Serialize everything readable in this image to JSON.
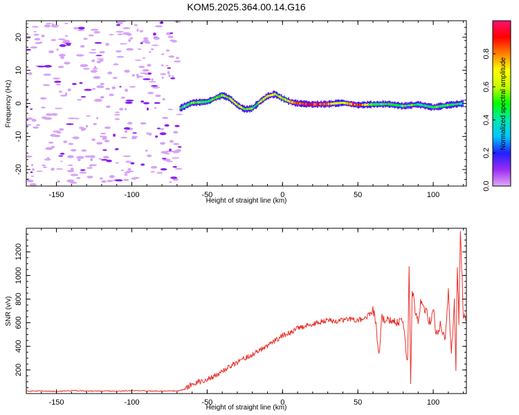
{
  "figure_title": "KOM5.2025.364.00.14.G16",
  "chart_data": [
    {
      "type": "heatmap",
      "xlabel": "Height of straight line (km)",
      "ylabel": "Frequency (Hz)",
      "xlim": [
        -170,
        122
      ],
      "ylim": [
        -25,
        25
      ],
      "x_ticks": [
        -150,
        -100,
        -50,
        0,
        50,
        100
      ],
      "x_tick_labels": [
        "-150",
        "-100",
        "-50",
        "0",
        "50",
        "100"
      ],
      "y_ticks": [
        20,
        10,
        0,
        -10,
        -20
      ],
      "y_tick_labels": [
        "20",
        "10",
        "0",
        "-10",
        "-20"
      ],
      "noise_region_x": [
        -170,
        -68
      ],
      "trace": {
        "x": [
          -68,
          -60,
          -50,
          -40,
          -35,
          -30,
          -25,
          -20,
          -15,
          -10,
          -5,
          0,
          5,
          10,
          20,
          30,
          40,
          50,
          60,
          70,
          80,
          90,
          100,
          110,
          120
        ],
        "freq": [
          -1.5,
          0.2,
          0.5,
          2.5,
          1.5,
          -0.5,
          -1.8,
          -1.5,
          0.5,
          2.2,
          2.8,
          1.5,
          0.5,
          0.0,
          -0.3,
          -0.2,
          0.2,
          -0.5,
          -0.3,
          -0.2,
          -0.8,
          -0.3,
          -1.2,
          -0.5,
          0.0
        ],
        "amplitude": [
          0.45,
          0.5,
          0.5,
          0.55,
          0.5,
          0.6,
          0.55,
          0.5,
          0.55,
          0.65,
          0.6,
          0.55,
          0.7,
          0.85,
          0.9,
          0.75,
          0.65,
          0.85,
          0.5,
          0.45,
          0.5,
          0.45,
          0.45,
          0.5,
          0.4
        ]
      },
      "colorbar": {
        "label": "Normalized spectral amplitude",
        "range": [
          0,
          1
        ],
        "ticks": [
          0.0,
          0.2,
          0.4,
          0.6,
          0.8
        ],
        "tick_labels": [
          "0.0",
          "0.2",
          "0.4",
          "0.6",
          "0.8"
        ],
        "colors": [
          "#e2a8f7",
          "#9b2bf2",
          "#2020ff",
          "#00c8ff",
          "#00e8b0",
          "#00ff00",
          "#c8ff00",
          "#ffff00",
          "#ff8000",
          "#ff0000",
          "#ff1070"
        ]
      }
    },
    {
      "type": "line",
      "xlabel": "Height of straight line (km)",
      "ylabel": "SNR (v/v)",
      "xlim": [
        -170,
        122
      ],
      "ylim": [
        0,
        1400
      ],
      "x_ticks": [
        -150,
        -100,
        -50,
        0,
        50,
        100
      ],
      "x_tick_labels": [
        "-150",
        "-100",
        "-50",
        "0",
        "50",
        "100"
      ],
      "y_ticks": [
        200,
        400,
        600,
        800,
        1000,
        1200
      ],
      "y_tick_labels": [
        "200",
        "400",
        "600",
        "800",
        "1000",
        "1200"
      ],
      "line_color": "#e8302a",
      "series": [
        {
          "name": "SNR",
          "x": [
            -170,
            -160,
            -150,
            -140,
            -130,
            -120,
            -110,
            -100,
            -90,
            -80,
            -70,
            -65,
            -60,
            -55,
            -50,
            -45,
            -40,
            -35,
            -30,
            -25,
            -20,
            -15,
            -10,
            -5,
            0,
            5,
            10,
            15,
            20,
            25,
            30,
            35,
            40,
            45,
            50,
            55,
            60,
            62,
            64,
            66,
            70,
            75,
            80,
            83,
            84,
            85,
            86,
            88,
            90,
            92,
            95,
            98,
            100,
            102,
            105,
            108,
            110,
            112,
            114,
            115,
            116,
            117,
            118,
            120,
            122
          ],
          "y": [
            20,
            22,
            18,
            25,
            20,
            22,
            20,
            25,
            22,
            20,
            22,
            35,
            80,
            100,
            120,
            150,
            190,
            230,
            260,
            300,
            330,
            370,
            400,
            450,
            490,
            520,
            550,
            570,
            590,
            610,
            620,
            610,
            620,
            630,
            620,
            640,
            700,
            600,
            300,
            650,
            620,
            600,
            640,
            250,
            1100,
            50,
            900,
            700,
            600,
            800,
            700,
            600,
            750,
            500,
            600,
            450,
            900,
            300,
            800,
            200,
            1100,
            600,
            1400,
            650,
            630
          ]
        }
      ]
    }
  ]
}
